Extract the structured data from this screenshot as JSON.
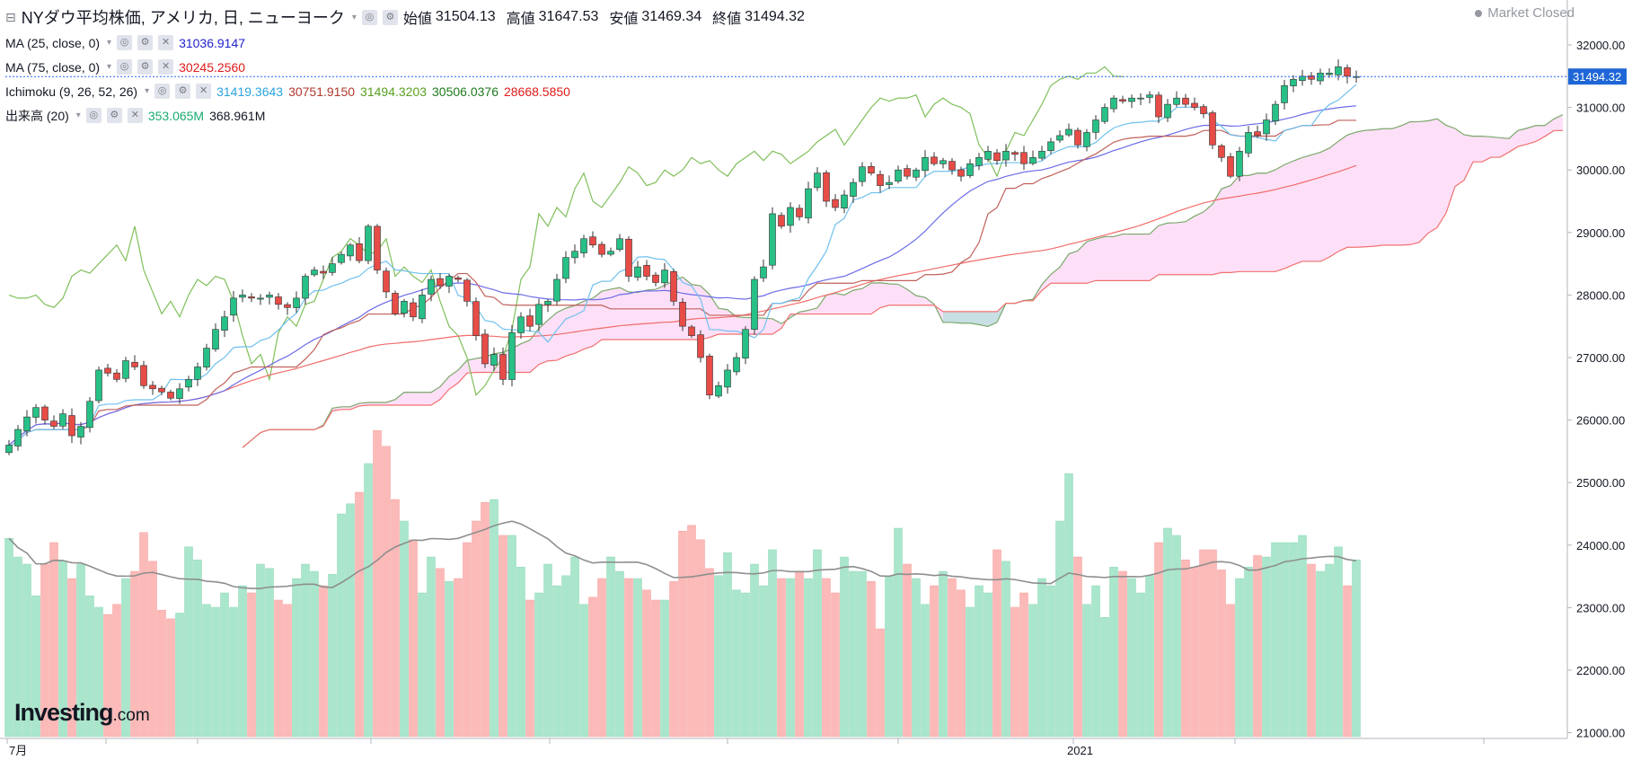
{
  "header": {
    "title": "NYダウ平均株価, アメリカ, 日, ニューヨーク",
    "open_label": "始値",
    "open": "31504.13",
    "high_label": "高値",
    "high": "31647.53",
    "low_label": "安値",
    "low": "31469.34",
    "close_label": "終値",
    "close": "31494.32",
    "status": "Market Closed"
  },
  "indicators": {
    "ma25": {
      "label": "MA (25, close, 0)",
      "value": "31036.9147",
      "color": "#1f1fcc"
    },
    "ma75": {
      "label": "MA (75, close, 0)",
      "value": "30245.2560",
      "color": "#e01b1b"
    },
    "ichimoku": {
      "label": "Ichimoku (9, 26, 52, 26)",
      "v1": "31419.3643",
      "c1": "#29a3e0",
      "v2": "30751.9150",
      "c2": "#b03a2e",
      "v3": "31494.3203",
      "c3": "#58a020",
      "v4": "30506.0376",
      "c4": "#1f7a1f",
      "v5": "28668.5850",
      "c5": "#e01b1b"
    },
    "volume": {
      "label": "出来高 (20)",
      "v1": "353.065M",
      "c1": "#1aab6f",
      "v2": "368.961M",
      "c2": "#131722"
    }
  },
  "logo": {
    "name": "Investing",
    "domain": ".com"
  },
  "chart_data": {
    "type": "candlestick",
    "title": "NYダウ平均株価, アメリカ, 日, ニューヨーク",
    "y_ticks": [
      21000,
      22000,
      23000,
      24000,
      25000,
      26000,
      27000,
      28000,
      29000,
      30000,
      31000,
      32000
    ],
    "ylim": [
      20900,
      32650
    ],
    "x_labels": [
      "7月",
      "2021"
    ],
    "last_price": "31494.32",
    "grid": false,
    "colors": {
      "up": "#26a69a",
      "down": "#ef5350",
      "cloud_up": "#fde0f7",
      "cloud_down": "#c8dfe4",
      "volume_ma": "#909090"
    },
    "closes": [
      25600,
      25850,
      26050,
      26200,
      26000,
      25900,
      26100,
      25750,
      25900,
      26300,
      26800,
      26750,
      26650,
      26950,
      26850,
      26550,
      26500,
      26450,
      26350,
      26500,
      26650,
      26850,
      27150,
      27450,
      27650,
      27950,
      28000,
      27950,
      27950,
      28000,
      27850,
      27800,
      27950,
      28300,
      28400,
      28350,
      28500,
      28650,
      28800,
      28550,
      29100,
      28400,
      28050,
      27700,
      27900,
      27650,
      28000,
      28250,
      28150,
      28300,
      28250,
      27900,
      27350,
      26900,
      27050,
      26650,
      27400,
      27650,
      27500,
      27850,
      27900,
      28250,
      28600,
      28700,
      28900,
      28800,
      28650,
      28700,
      28900,
      28300,
      28450,
      28300,
      28200,
      28400,
      27900,
      27500,
      27350,
      27000,
      26400,
      26550,
      26800,
      27000,
      27450,
      28250,
      28450,
      29300,
      29100,
      29400,
      29250,
      29700,
      29950,
      29500,
      29400,
      29600,
      29800,
      30050,
      29950,
      29750,
      29800,
      30000,
      29900,
      30000,
      30200,
      30100,
      30150,
      30000,
      29900,
      30100,
      30200,
      30300,
      30150,
      30300,
      30250,
      30100,
      30200,
      30300,
      30450,
      30550,
      30650,
      30400,
      30600,
      30800,
      31000,
      31150,
      31100,
      31150,
      31150,
      31200,
      30850,
      31050,
      31150,
      31050,
      31000,
      30900,
      30400,
      30200,
      29900,
      30300,
      30600,
      30550,
      30800,
      31050,
      31350,
      31450,
      31500,
      31450,
      31550,
      31550,
      31650,
      31500,
      31494
    ],
    "volumes": [
      368,
      355,
      350,
      328,
      350,
      365,
      352,
      340,
      350,
      328,
      320,
      315,
      322,
      340,
      345,
      372,
      352,
      318,
      312,
      316,
      362,
      353,
      322,
      320,
      330,
      320,
      335,
      330,
      350,
      347,
      325,
      322,
      340,
      350,
      345,
      335,
      343,
      385,
      392,
      400,
      420,
      443,
      432,
      395,
      380,
      367,
      330,
      355,
      347,
      338,
      340,
      365,
      380,
      393,
      395,
      370,
      370,
      348,
      325,
      330,
      350,
      335,
      342,
      355,
      322,
      327,
      340,
      355,
      345,
      340,
      340,
      332,
      325,
      325,
      338,
      373,
      377,
      367,
      347,
      342,
      358,
      332,
      330,
      350,
      335,
      360,
      340,
      340,
      345,
      340,
      360,
      340,
      330,
      355,
      345,
      345,
      338,
      305,
      342,
      375,
      350,
      340,
      322,
      335,
      345,
      340,
      332,
      320,
      335,
      330,
      360,
      352,
      320,
      330,
      322,
      340,
      335,
      380,
      413,
      355,
      322,
      335,
      313,
      348,
      345,
      340,
      330,
      342,
      365,
      375,
      370,
      353,
      348,
      360,
      360,
      346,
      322,
      340,
      348,
      356,
      355,
      365,
      365,
      365,
      370,
      350,
      345,
      350,
      362,
      335,
      353
    ]
  }
}
